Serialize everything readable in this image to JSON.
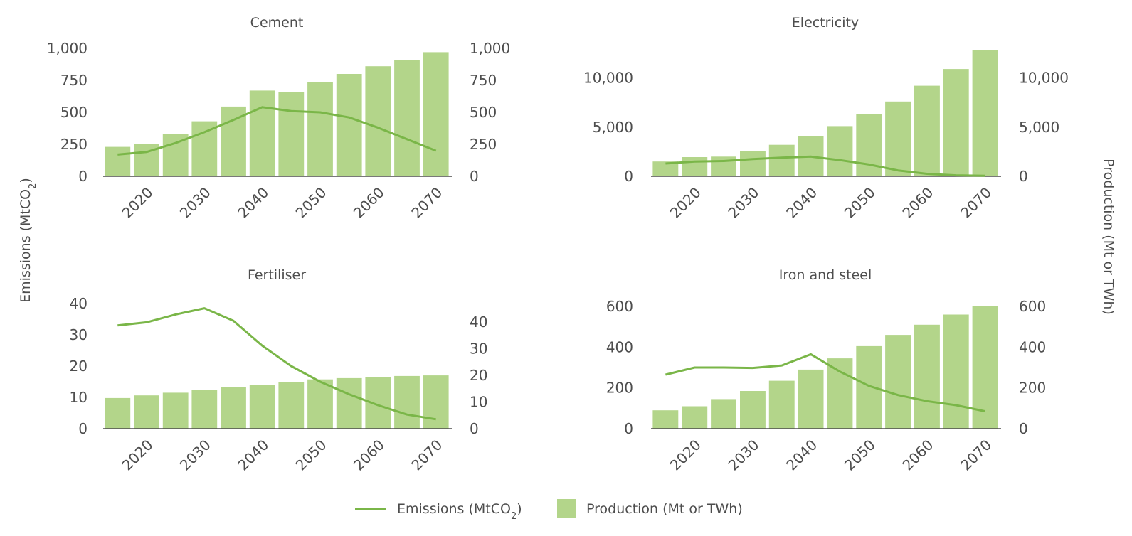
{
  "colors": {
    "bar": "#b3d58a",
    "line": "#7ab648",
    "text": "#4d4d4d",
    "axis": "#4d4d4d"
  },
  "y_left_title": "Emissions (MtCO",
  "y_left_title_sub": "2",
  "y_left_title_end": ")",
  "y_right_title": "Production (Mt or TWh)",
  "legend": {
    "emissions_label": "Emissions (MtCO",
    "emissions_sub": "2",
    "emissions_end": ")",
    "production_label": "Production (Mt or TWh)"
  },
  "chart_data": [
    {
      "type": "bar",
      "title": "Cement",
      "x": [
        2015,
        2020,
        2025,
        2030,
        2035,
        2040,
        2045,
        2050,
        2055,
        2060,
        2065,
        2070
      ],
      "x_ticks": [
        "2020",
        "2030",
        "2040",
        "2050",
        "2060",
        "2070"
      ],
      "left_ticks": [
        "0",
        "250",
        "500",
        "750",
        "1,000"
      ],
      "right_ticks": [
        "0",
        "250",
        "500",
        "750",
        "1,000"
      ],
      "left_range": [
        0,
        1000
      ],
      "right_range": [
        0,
        1000
      ],
      "series": [
        {
          "kind": "line",
          "axis": "left",
          "values": [
            170,
            190,
            260,
            345,
            440,
            540,
            510,
            500,
            460,
            380,
            290,
            200
          ]
        },
        {
          "kind": "bar",
          "axis": "right",
          "values": [
            230,
            255,
            330,
            430,
            545,
            670,
            660,
            735,
            800,
            860,
            910,
            970
          ]
        }
      ]
    },
    {
      "type": "bar",
      "title": "Electricity",
      "x": [
        2015,
        2020,
        2025,
        2030,
        2035,
        2040,
        2045,
        2050,
        2055,
        2060,
        2065,
        2070
      ],
      "x_ticks": [
        "2020",
        "2030",
        "2040",
        "2050",
        "2060",
        "2070"
      ],
      "left_ticks": [
        "0",
        "5,000",
        "10,000"
      ],
      "right_ticks": [
        "0",
        "5,000",
        "10,000"
      ],
      "left_range": [
        0,
        13000
      ],
      "right_range": [
        0,
        13000
      ],
      "series": [
        {
          "kind": "line",
          "axis": "left",
          "values": [
            1300,
            1500,
            1550,
            1750,
            1900,
            2000,
            1650,
            1200,
            600,
            250,
            100,
            50
          ]
        },
        {
          "kind": "bar",
          "axis": "right",
          "values": [
            1500,
            1950,
            2000,
            2600,
            3200,
            4100,
            5100,
            6300,
            7600,
            9200,
            10900,
            12800
          ]
        }
      ]
    },
    {
      "type": "bar",
      "title": "Fertiliser",
      "x": [
        2015,
        2020,
        2025,
        2030,
        2035,
        2040,
        2045,
        2050,
        2055,
        2060,
        2065,
        2070
      ],
      "x_ticks": [
        "2020",
        "2030",
        "2040",
        "2050",
        "2060",
        "2070"
      ],
      "left_ticks": [
        "0",
        "10",
        "20",
        "30",
        "40"
      ],
      "right_ticks": [
        "0",
        "10",
        "20",
        "30",
        "40"
      ],
      "left_range": [
        0,
        40
      ],
      "right_range": [
        0,
        47
      ],
      "series": [
        {
          "kind": "line",
          "axis": "left",
          "values": [
            33,
            34,
            36.5,
            38.5,
            34.5,
            26.5,
            20,
            15,
            11,
            7.5,
            4.5,
            3
          ]
        },
        {
          "kind": "bar",
          "axis": "right",
          "values": [
            11.5,
            12.5,
            13.5,
            14.5,
            15.5,
            16.5,
            17.5,
            18.5,
            19,
            19.5,
            19.8,
            20
          ]
        }
      ]
    },
    {
      "type": "bar",
      "title": "Iron and steel",
      "x": [
        2015,
        2020,
        2025,
        2030,
        2035,
        2040,
        2045,
        2050,
        2055,
        2060,
        2065,
        2070
      ],
      "x_ticks": [
        "2020",
        "2030",
        "2040",
        "2050",
        "2060",
        "2070"
      ],
      "left_ticks": [
        "0",
        "200",
        "400",
        "600"
      ],
      "right_ticks": [
        "0",
        "200",
        "400",
        "600"
      ],
      "left_range": [
        0,
        600
      ],
      "right_range": [
        0,
        600
      ],
      "series": [
        {
          "kind": "line",
          "axis": "left",
          "values": [
            265,
            300,
            300,
            298,
            310,
            365,
            280,
            210,
            165,
            135,
            115,
            85
          ]
        },
        {
          "kind": "bar",
          "axis": "right",
          "values": [
            90,
            110,
            145,
            185,
            235,
            290,
            345,
            405,
            460,
            510,
            560,
            600
          ]
        }
      ]
    }
  ]
}
